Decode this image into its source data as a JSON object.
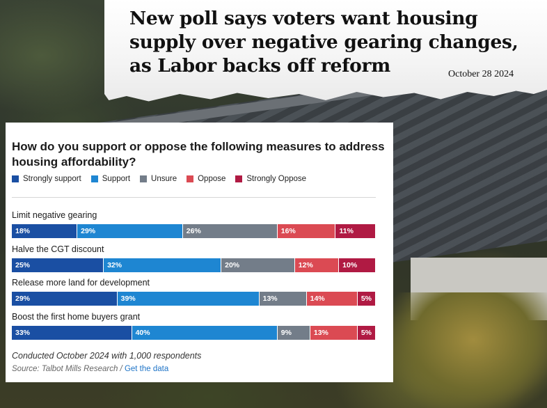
{
  "article": {
    "headline": "New poll says voters want housing supply over negative gearing changes, as Labor backs off reform",
    "date": "October 28 2024"
  },
  "chart_data": {
    "type": "bar",
    "orientation": "horizontal",
    "stacked": true,
    "normalized": true,
    "title": "How do you support or oppose the following measures to address housing affordability?",
    "categories": [
      "Limit negative gearing",
      "Halve the CGT discount",
      "Release more land for development",
      "Boost the first home buyers grant"
    ],
    "series": [
      {
        "name": "Strongly support",
        "color": "#1a4fa3",
        "values": [
          18,
          25,
          29,
          33
        ]
      },
      {
        "name": "Support",
        "color": "#1e86d2",
        "values": [
          29,
          32,
          39,
          40
        ]
      },
      {
        "name": "Unsure",
        "color": "#737d89",
        "values": [
          26,
          20,
          13,
          9
        ]
      },
      {
        "name": "Oppose",
        "color": "#db4a53",
        "values": [
          16,
          12,
          14,
          13
        ]
      },
      {
        "name": "Strongly Oppose",
        "color": "#b01a43",
        "values": [
          11,
          10,
          5,
          5
        ]
      }
    ],
    "value_suffix": "%",
    "legend_position": "top",
    "footnote": "Conducted October 2024 with 1,000 respondents",
    "source_text": "Source: Talbot Mills Research /",
    "source_link": "Get the data"
  }
}
